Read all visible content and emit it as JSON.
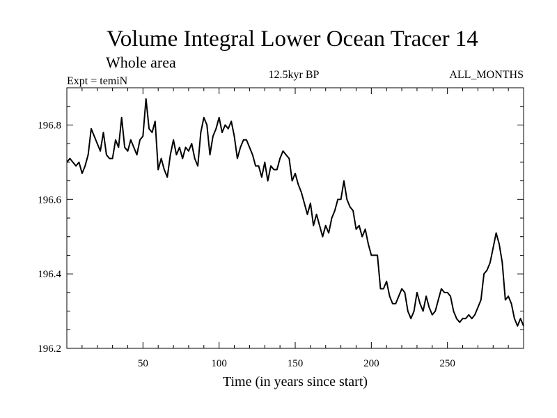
{
  "chart_data": {
    "type": "line",
    "title": "Volume Integral Lower Ocean Tracer 14",
    "subtitle": "Whole area",
    "annotations": {
      "left": "Expt = temiN",
      "center": "12.5kyr BP",
      "right": "ALL_MONTHS"
    },
    "xlabel": "Time (in years since start)",
    "ylabel": "",
    "xlim": [
      0,
      300
    ],
    "ylim": [
      196.2,
      196.9
    ],
    "x_ticks": [
      50,
      100,
      150,
      200,
      250
    ],
    "y_ticks": [
      196.2,
      196.4,
      196.6,
      196.8
    ],
    "x_tick_labels": [
      "50",
      "100",
      "150",
      "200",
      "250"
    ],
    "y_tick_labels": [
      "196.2",
      "196.4",
      "196.6",
      "196.8"
    ],
    "grid": false,
    "series": [
      {
        "name": "Tracer 14",
        "color": "#000000",
        "x": [
          0,
          2,
          4,
          6,
          8,
          10,
          12,
          14,
          16,
          18,
          20,
          22,
          24,
          26,
          28,
          30,
          32,
          34,
          36,
          38,
          40,
          42,
          44,
          46,
          48,
          50,
          52,
          54,
          56,
          58,
          60,
          62,
          64,
          66,
          68,
          70,
          72,
          74,
          76,
          78,
          80,
          82,
          84,
          86,
          88,
          90,
          92,
          94,
          96,
          98,
          100,
          102,
          104,
          106,
          108,
          110,
          112,
          114,
          116,
          118,
          120,
          122,
          124,
          126,
          128,
          130,
          132,
          134,
          136,
          138,
          140,
          142,
          144,
          146,
          148,
          150,
          152,
          154,
          156,
          158,
          160,
          162,
          164,
          166,
          168,
          170,
          172,
          174,
          176,
          178,
          180,
          182,
          184,
          186,
          188,
          190,
          192,
          194,
          196,
          198,
          200,
          202,
          204,
          206,
          208,
          210,
          212,
          214,
          216,
          218,
          220,
          222,
          224,
          226,
          228,
          230,
          232,
          234,
          236,
          238,
          240,
          242,
          244,
          246,
          248,
          250,
          252,
          254,
          256,
          258,
          260,
          262,
          264,
          266,
          268,
          270,
          272,
          274,
          276,
          278,
          280,
          282,
          284,
          286,
          288,
          290,
          292,
          294,
          296,
          298,
          300
        ],
        "values": [
          196.7,
          196.71,
          196.7,
          196.69,
          196.7,
          196.67,
          196.69,
          196.72,
          196.79,
          196.77,
          196.75,
          196.73,
          196.78,
          196.72,
          196.71,
          196.71,
          196.76,
          196.74,
          196.82,
          196.74,
          196.73,
          196.76,
          196.74,
          196.72,
          196.76,
          196.77,
          196.87,
          196.79,
          196.78,
          196.81,
          196.68,
          196.71,
          196.68,
          196.66,
          196.72,
          196.76,
          196.72,
          196.74,
          196.71,
          196.74,
          196.73,
          196.75,
          196.71,
          196.69,
          196.78,
          196.82,
          196.8,
          196.72,
          196.77,
          196.79,
          196.82,
          196.78,
          196.8,
          196.79,
          196.81,
          196.77,
          196.71,
          196.74,
          196.76,
          196.76,
          196.74,
          196.72,
          196.69,
          196.69,
          196.66,
          196.7,
          196.65,
          196.69,
          196.68,
          196.68,
          196.71,
          196.73,
          196.72,
          196.71,
          196.65,
          196.67,
          196.64,
          196.62,
          196.59,
          196.56,
          196.59,
          196.53,
          196.56,
          196.53,
          196.5,
          196.53,
          196.51,
          196.55,
          196.57,
          196.6,
          196.6,
          196.65,
          196.6,
          196.58,
          196.57,
          196.52,
          196.53,
          196.5,
          196.52,
          196.48,
          196.45,
          196.45,
          196.45,
          196.36,
          196.36,
          196.38,
          196.34,
          196.32,
          196.32,
          196.34,
          196.36,
          196.35,
          196.3,
          196.28,
          196.3,
          196.35,
          196.32,
          196.3,
          196.34,
          196.31,
          196.29,
          196.3,
          196.33,
          196.36,
          196.35,
          196.35,
          196.34,
          196.3,
          196.28,
          196.27,
          196.28,
          196.28,
          196.29,
          196.28,
          196.29,
          196.31,
          196.33,
          196.4,
          196.41,
          196.43,
          196.47,
          196.51,
          196.48,
          196.43,
          196.33,
          196.34,
          196.32,
          196.28,
          196.26,
          196.28,
          196.26
        ]
      }
    ]
  }
}
